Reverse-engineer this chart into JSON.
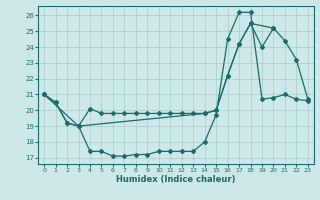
{
  "xlabel": "Humidex (Indice chaleur)",
  "bg_color": "#cce8e8",
  "line_color": "#1a6b6b",
  "grid_color": "#aacccc",
  "xlim": [
    -0.5,
    23.5
  ],
  "ylim": [
    16.6,
    26.6
  ],
  "yticks": [
    17,
    18,
    19,
    20,
    21,
    22,
    23,
    24,
    25,
    26
  ],
  "xticks": [
    0,
    1,
    2,
    3,
    4,
    5,
    6,
    7,
    8,
    9,
    10,
    11,
    12,
    13,
    14,
    15,
    16,
    17,
    18,
    19,
    20,
    21,
    22,
    23
  ],
  "curve1_x": [
    0,
    1,
    2,
    3,
    4,
    5,
    6,
    7,
    8,
    9,
    10,
    11,
    12,
    13,
    14,
    15,
    16,
    17,
    18,
    19,
    20,
    21,
    22,
    23
  ],
  "curve1_y": [
    21.0,
    20.5,
    19.2,
    19.0,
    17.4,
    17.4,
    17.1,
    17.1,
    17.2,
    17.2,
    17.4,
    17.4,
    17.4,
    17.4,
    18.0,
    19.7,
    24.5,
    26.2,
    26.2,
    20.7,
    20.8,
    21.0,
    20.7,
    20.6
  ],
  "curve2_x": [
    0,
    1,
    2,
    3,
    4,
    5,
    6,
    7,
    8,
    9,
    10,
    11,
    12,
    13,
    14,
    15,
    16,
    17,
    18,
    19,
    20,
    21,
    22,
    23
  ],
  "curve2_y": [
    21.0,
    20.5,
    19.2,
    19.0,
    20.1,
    19.8,
    19.8,
    19.8,
    19.8,
    19.8,
    19.8,
    19.8,
    19.8,
    19.8,
    19.8,
    20.0,
    22.2,
    24.2,
    25.5,
    24.0,
    25.2,
    24.4,
    23.2,
    20.7
  ],
  "curve3_x": [
    0,
    3,
    14,
    15,
    16,
    17,
    18,
    20
  ],
  "curve3_y": [
    21.0,
    19.0,
    19.8,
    20.0,
    22.2,
    24.2,
    25.5,
    25.2
  ]
}
